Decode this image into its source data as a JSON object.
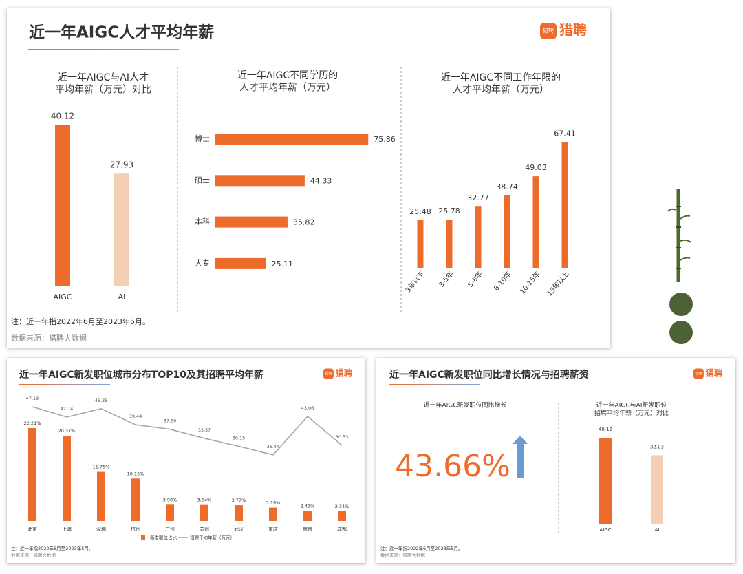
{
  "logo": "猎聘",
  "panels": [
    {
      "title": "近一年AIGC人才平均年薪",
      "note": "注：近一年指2022年6月至2023年5月。",
      "source": "数据来源：猎聘大数据"
    },
    {
      "title": "近一年AIGC新发职位城市分布TOP10及其招聘平均年薪",
      "note": "注：近一年指2022年6月至2023年5月。",
      "source": "数据来源：猎聘大数据"
    },
    {
      "title": "近一年AIGC新发职位同比增长情况与招聘薪资",
      "note": "注：近一年指2022年6月至2023年5月。",
      "source": "数据来源：猎聘大数据"
    }
  ],
  "growth": {
    "label": "近一年AIGC新发职位同比增长",
    "value": 43.66,
    "value_label": "43.66%",
    "arrow_color": "#6b9bd2"
  },
  "chart_data": [
    {
      "type": "bar",
      "title": [
        "近一年AIGC与AI人才",
        "平均年薪（万元）对比"
      ],
      "categories": [
        "AIGC",
        "AI"
      ],
      "values": [
        40.12,
        27.93
      ],
      "colors": [
        "#ee6c2b",
        "#f5cfb3"
      ]
    },
    {
      "type": "barh",
      "title": [
        "近一年AIGC不同学历的",
        "人才平均年薪（万元）"
      ],
      "categories": [
        "博士",
        "硕士",
        "本科",
        "大专"
      ],
      "values": [
        75.86,
        44.33,
        35.82,
        25.11
      ],
      "color": "#ee6c2b"
    },
    {
      "type": "bar",
      "title": [
        "近一年AIGC不同工作年限的",
        "人才平均年薪（万元）"
      ],
      "categories": [
        "3年以下",
        "3-5年",
        "5-8年",
        "8-10年",
        "10-15年",
        "15年以上"
      ],
      "values": [
        25.48,
        25.78,
        32.77,
        38.74,
        49.03,
        67.41
      ],
      "color": "#ee6c2b"
    },
    {
      "type": "bar_line",
      "categories": [
        "北京",
        "上海",
        "深圳",
        "杭州",
        "广州",
        "苏州",
        "武汉",
        "重庆",
        "南京",
        "成都"
      ],
      "series": [
        {
          "name": "新发职位占比",
          "color": "#ee6c2b",
          "type": "bar",
          "values": [
            22.21,
            20.37,
            11.75,
            10.15,
            3.9,
            3.84,
            3.77,
            3.19,
            2.41,
            2.34
          ],
          "value_labels": [
            "22.21%",
            "20.37%",
            "11.75%",
            "10.15%",
            "3.90%",
            "3.84%",
            "3.77%",
            "3.19%",
            "2.41%",
            "2.34%"
          ]
        },
        {
          "name": "招聘平均年薪（万元）",
          "color": "#a6a6a6",
          "type": "line",
          "values": [
            47.19,
            42.74,
            46.35,
            39.44,
            37.5,
            33.57,
            30.15,
            26.44,
            43.06,
            30.53
          ],
          "value_labels": [
            "47.19",
            "42.74",
            "46.35",
            "39.44",
            "37.50",
            "33.57",
            "30.15",
            "26.44",
            "43.06",
            "30.53"
          ]
        }
      ]
    },
    {
      "type": "bar",
      "title": [
        "近一年AIGC与AI新发职位",
        "招聘平均年薪（万元）对比"
      ],
      "categories": [
        "AIGC",
        "AI"
      ],
      "values": [
        40.12,
        32.03
      ],
      "colors": [
        "#ee6c2b",
        "#f5cfb3"
      ]
    }
  ]
}
